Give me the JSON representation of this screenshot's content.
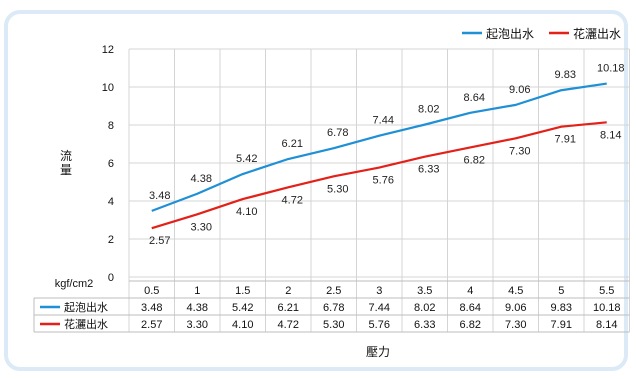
{
  "chart_data": {
    "type": "line",
    "x": [
      "0.5",
      "1",
      "1.5",
      "2",
      "2.5",
      "3",
      "3.5",
      "4",
      "4.5",
      "5",
      "5.5"
    ],
    "x_unit": "kgf/cm2",
    "xlabel": "壓力",
    "ylabel": "流量",
    "ylim": [
      0,
      12
    ],
    "yticks": [
      "0",
      "2",
      "4",
      "6",
      "8",
      "10",
      "12"
    ],
    "grid": true,
    "legend_position": "top-right",
    "series": [
      {
        "name": "起泡出水",
        "color": "#1f8fd6",
        "values": [
          3.48,
          4.38,
          5.42,
          6.21,
          6.78,
          7.44,
          8.02,
          8.64,
          9.06,
          9.83,
          10.18
        ],
        "labels": [
          "3.48",
          "4.38",
          "5.42",
          "6.21",
          "6.78",
          "7.44",
          "8.02",
          "8.64",
          "9.06",
          "9.83",
          "10.18"
        ]
      },
      {
        "name": "花灑出水",
        "color": "#e32119",
        "values": [
          2.57,
          3.3,
          4.1,
          4.72,
          5.3,
          5.76,
          6.33,
          6.82,
          7.3,
          7.91,
          8.14
        ],
        "labels": [
          "2.57",
          "3.30",
          "4.10",
          "4.72",
          "5.30",
          "5.76",
          "6.33",
          "6.82",
          "7.30",
          "7.91",
          "8.14"
        ]
      }
    ]
  }
}
